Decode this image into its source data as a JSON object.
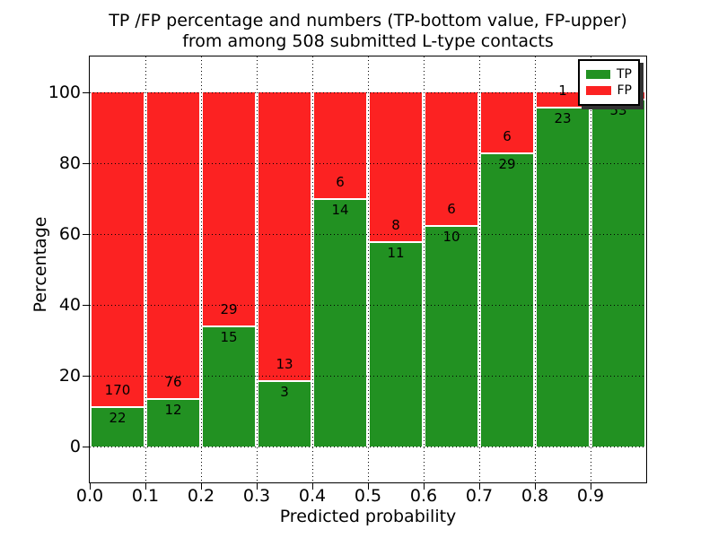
{
  "chart_data": {
    "type": "bar",
    "stacked": true,
    "normalized_to_percent": true,
    "title_line1": "TP /FP percentage and numbers (TP-bottom value, FP-upper)",
    "title_line2": "from among 508 submitted L-type contacts",
    "total_contacts": 508,
    "xlabel": "Predicted probability",
    "ylabel": "Percentage",
    "x_bin_starts": [
      0.0,
      0.1,
      0.2,
      0.3,
      0.4,
      0.5,
      0.6,
      0.7,
      0.8,
      0.9
    ],
    "bin_width": 0.1,
    "x_tick_labels": [
      "0.0",
      "0.1",
      "0.2",
      "0.3",
      "0.4",
      "0.5",
      "0.6",
      "0.7",
      "0.8",
      "0.9"
    ],
    "y_tick_values": [
      0,
      20,
      40,
      60,
      80,
      100
    ],
    "y_tick_labels": [
      "0",
      "20",
      "40",
      "60",
      "80",
      "100"
    ],
    "xlim": [
      0.0,
      1.0
    ],
    "ylim": [
      -10,
      110
    ],
    "grid": "dotted",
    "series": [
      {
        "name": "TP",
        "color": "#229122",
        "values": [
          22,
          12,
          15,
          3,
          14,
          11,
          10,
          29,
          23,
          53
        ]
      },
      {
        "name": "FP",
        "color": "#fc2222",
        "values": [
          170,
          76,
          29,
          13,
          6,
          8,
          6,
          6,
          1,
          1
        ]
      }
    ],
    "legend": {
      "position": "upper right",
      "entries": [
        {
          "label": "TP",
          "color": "#229122"
        },
        {
          "label": "FP",
          "color": "#fc2222"
        }
      ]
    }
  }
}
